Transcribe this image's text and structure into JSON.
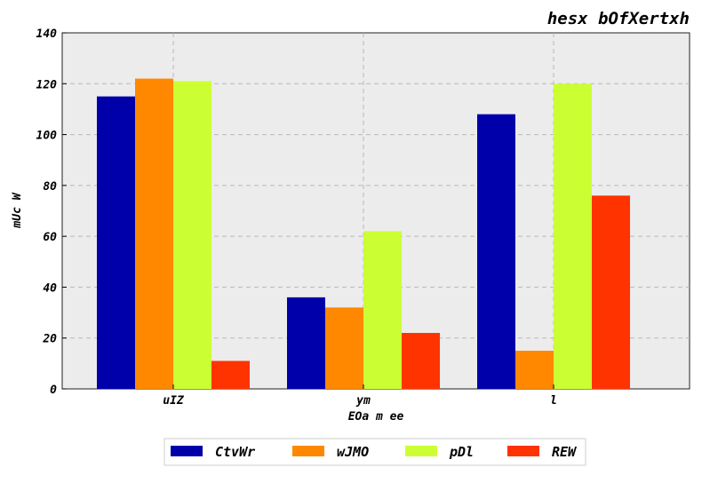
{
  "chart_data": {
    "type": "bar",
    "title": "hesx bOfXertxh",
    "xlabel": "EOa m ee",
    "ylabel": "mUc W",
    "categories": [
      "uIZ",
      "ym",
      "l"
    ],
    "ylim": [
      0,
      140
    ],
    "yticks": [
      0,
      20,
      40,
      60,
      80,
      100,
      120,
      140
    ],
    "grid": true,
    "legend_position": "bottom-center",
    "series": [
      {
        "name": "CtvWr",
        "color": "#0000aa",
        "values": [
          115,
          36,
          108
        ]
      },
      {
        "name": "wJMO",
        "color": "#ff8800",
        "values": [
          122,
          32,
          15
        ]
      },
      {
        "name": "pDl",
        "color": "#ccff33",
        "values": [
          121,
          62,
          120
        ]
      },
      {
        "name": "REW",
        "color": "#ff3300",
        "values": [
          11,
          22,
          76
        ]
      }
    ]
  }
}
